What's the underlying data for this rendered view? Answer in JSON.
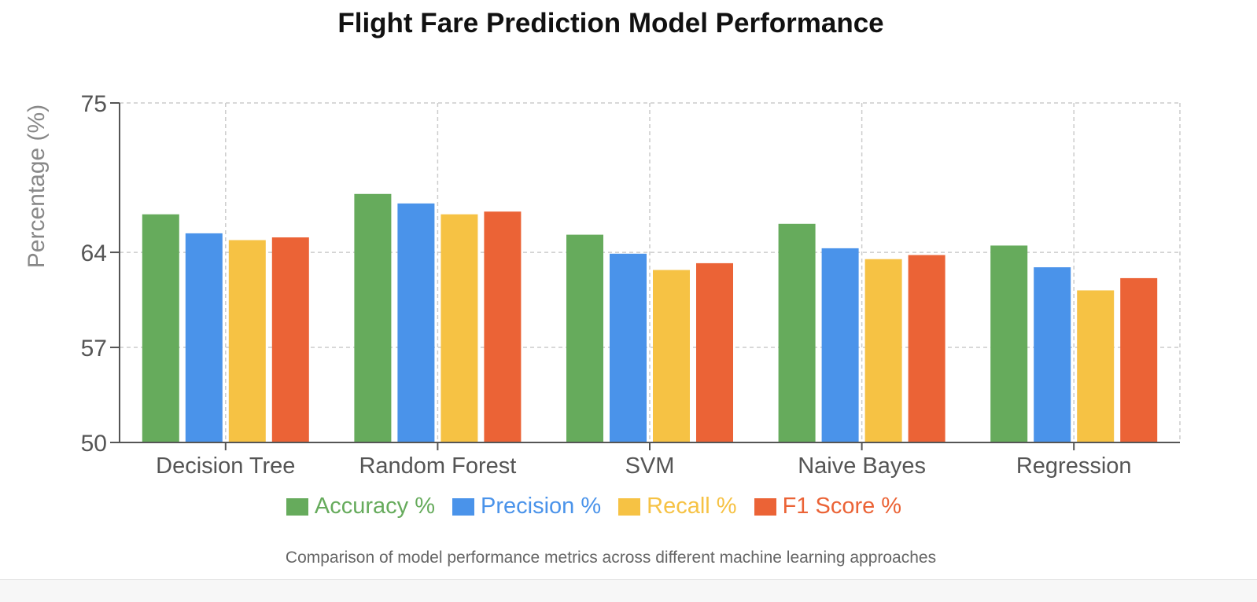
{
  "chart_data": {
    "type": "bar",
    "title": "Flight Fare Prediction Model Performance",
    "ylabel": "Percentage (%)",
    "xlabel": "",
    "ylim": [
      50,
      75
    ],
    "yticks": [
      50,
      57,
      64,
      75
    ],
    "grid": true,
    "legend_position": "bottom",
    "categories": [
      "Decision Tree",
      "Random Forest",
      "SVM",
      "Naive Bayes",
      "Regression"
    ],
    "series": [
      {
        "name": "Accuracy %",
        "color": "#66ab5c",
        "values": [
          66.8,
          68.3,
          65.3,
          66.1,
          64.5
        ]
      },
      {
        "name": "Precision %",
        "color": "#4a93ea",
        "values": [
          65.4,
          67.6,
          63.9,
          64.3,
          62.9
        ]
      },
      {
        "name": "Recall %",
        "color": "#f6c244",
        "values": [
          64.9,
          66.8,
          62.7,
          63.5,
          61.2
        ]
      },
      {
        "name": "F1 Score %",
        "color": "#eb6336",
        "values": [
          65.1,
          67.0,
          63.2,
          63.8,
          62.1
        ]
      }
    ],
    "caption": "Comparison of model performance metrics across different machine learning approaches"
  }
}
